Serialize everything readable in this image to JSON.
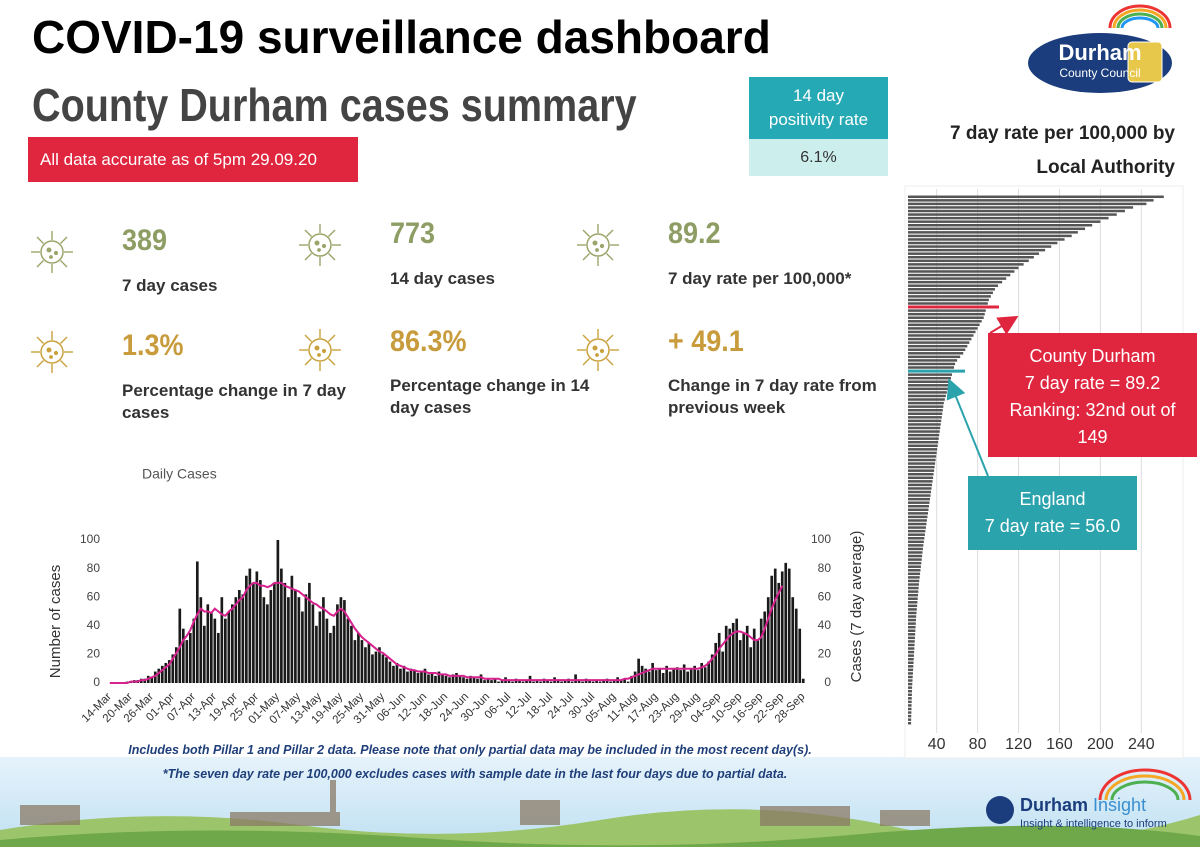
{
  "header": {
    "title": "COVID-19 surveillance dashboard",
    "subtitle": "County Durham cases summary",
    "note": "All data accurate as of 5pm 29.09.20",
    "logo": "Durham",
    "logo_sub": "County Council"
  },
  "positivity": {
    "label": "14 day positivity rate",
    "value": "6.1%"
  },
  "kpis": [
    {
      "value": "389",
      "label": "7 day cases"
    },
    {
      "value": "773",
      "label": "14 day cases"
    },
    {
      "value": "89.2",
      "label": "7 day rate per 100,000*"
    },
    {
      "value": "1.3%",
      "label": "Percentage change in 7 day cases"
    },
    {
      "value": "86.3%",
      "label": "Percentage change in 14 day cases"
    },
    {
      "value": "+ 49.1",
      "label": "Change in 7 day rate from previous week"
    }
  ],
  "chart_data": [
    {
      "type": "bar",
      "title": "Daily Cases",
      "y_label": "Number of cases",
      "y2_label": "Cases (7 day average)",
      "categories": [
        "14-Mar",
        null,
        null,
        null,
        null,
        null,
        "20-Mar",
        null,
        null,
        null,
        null,
        null,
        "26-Mar",
        null,
        null,
        null,
        null,
        null,
        "01-Apr",
        null,
        null,
        null,
        null,
        null,
        "07-Apr",
        null,
        null,
        null,
        null,
        null,
        "13-Apr",
        null,
        null,
        null,
        null,
        null,
        "19-Apr",
        null,
        null,
        null,
        null,
        null,
        "25-Apr",
        null,
        null,
        null,
        null,
        null,
        "01-May",
        null,
        null,
        null,
        null,
        null,
        "07-May",
        null,
        null,
        null,
        null,
        null,
        "13-May",
        null,
        null,
        null,
        null,
        null,
        "19-May",
        null,
        null,
        null,
        null,
        null,
        "25-May",
        null,
        null,
        null,
        null,
        null,
        "31-May",
        null,
        null,
        null,
        null,
        null,
        "06-Jun",
        null,
        null,
        null,
        null,
        null,
        "12-Jun",
        null,
        null,
        null,
        null,
        null,
        "18-Jun",
        null,
        null,
        null,
        null,
        null,
        "24-Jun",
        null,
        null,
        null,
        null,
        null,
        "30-Jun",
        null,
        null,
        null,
        null,
        null,
        "06-Jul",
        null,
        null,
        null,
        null,
        null,
        "12-Jul",
        null,
        null,
        null,
        null,
        null,
        "18-Jul",
        null,
        null,
        null,
        null,
        null,
        "24-Jul",
        null,
        null,
        null,
        null,
        null,
        "30-Jul",
        null,
        null,
        null,
        null,
        null,
        "05-Aug",
        null,
        null,
        null,
        null,
        null,
        "11-Aug",
        null,
        null,
        null,
        null,
        null,
        "17-Aug",
        null,
        null,
        null,
        null,
        null,
        "23-Aug",
        null,
        null,
        null,
        null,
        null,
        "29-Aug",
        null,
        null,
        null,
        null,
        null,
        "04-Sep",
        null,
        null,
        null,
        null,
        null,
        "10-Sep",
        null,
        null,
        null,
        null,
        null,
        "16-Sep",
        null,
        null,
        null,
        null,
        null,
        "22-Sep",
        null,
        null,
        null,
        null,
        null,
        "28-Sep"
      ],
      "series": [
        {
          "type": "bar",
          "color": "#1a1a1a",
          "values": [
            0,
            0,
            0,
            0,
            0,
            1,
            1,
            2,
            2,
            3,
            3,
            5,
            4,
            8,
            10,
            12,
            14,
            16,
            20,
            25,
            52,
            38,
            30,
            35,
            45,
            85,
            60,
            40,
            55,
            50,
            45,
            35,
            60,
            45,
            50,
            55,
            60,
            65,
            62,
            75,
            80,
            70,
            78,
            72,
            60,
            55,
            65,
            70,
            100,
            80,
            70,
            60,
            75,
            65,
            60,
            50,
            62,
            70,
            55,
            40,
            50,
            60,
            45,
            35,
            40,
            55,
            60,
            58,
            45,
            40,
            30,
            35,
            30,
            25,
            28,
            20,
            22,
            25,
            20,
            18,
            15,
            12,
            14,
            10,
            12,
            8,
            10,
            9,
            7,
            8,
            10,
            6,
            7,
            5,
            8,
            6,
            5,
            4,
            6,
            7,
            5,
            4,
            3,
            5,
            4,
            3,
            6,
            2,
            3,
            2,
            3,
            1,
            2,
            4,
            2,
            1,
            3,
            2,
            1,
            2,
            5,
            1,
            2,
            1,
            3,
            2,
            1,
            4,
            2,
            1,
            2,
            3,
            1,
            6,
            2,
            1,
            3,
            2,
            1,
            2,
            1,
            2,
            3,
            1,
            2,
            4,
            2,
            3,
            1,
            5,
            8,
            17,
            12,
            10,
            8,
            14,
            9,
            10,
            7,
            12,
            8,
            10,
            11,
            9,
            13,
            8,
            10,
            12,
            9,
            14,
            11,
            15,
            20,
            28,
            35,
            22,
            40,
            38,
            42,
            45,
            30,
            35,
            40,
            25,
            38,
            30,
            45,
            50,
            60,
            75,
            80,
            70,
            78,
            84,
            80,
            60,
            52,
            38,
            3
          ]
        },
        {
          "type": "line",
          "color": "#d6218f",
          "axis": "y2",
          "values": [
            0,
            0,
            0,
            0,
            0,
            0,
            1,
            1,
            1,
            2,
            2,
            3,
            4,
            5,
            7,
            9,
            11,
            13,
            17,
            21,
            25,
            30,
            33,
            37,
            43,
            48,
            52,
            50,
            50,
            49,
            52,
            50,
            48,
            47,
            50,
            52,
            55,
            58,
            60,
            65,
            68,
            70,
            70,
            68,
            68,
            67,
            68,
            70,
            70,
            70,
            68,
            67,
            66,
            65,
            64,
            62,
            60,
            58,
            56,
            55,
            53,
            52,
            50,
            48,
            47,
            50,
            52,
            50,
            46,
            42,
            38,
            35,
            32,
            30,
            28,
            26,
            24,
            22,
            21,
            19,
            17,
            15,
            13,
            12,
            11,
            10,
            9,
            9,
            8,
            8,
            8,
            7,
            7,
            7,
            6,
            6,
            6,
            5,
            5,
            5,
            5,
            5,
            4,
            4,
            4,
            4,
            4,
            3,
            3,
            3,
            3,
            3,
            2,
            2,
            2,
            2,
            2,
            2,
            2,
            2,
            2,
            2,
            2,
            2,
            2,
            2,
            2,
            2,
            2,
            2,
            2,
            2,
            2,
            2,
            2,
            2,
            2,
            2,
            2,
            2,
            2,
            2,
            2,
            2,
            2,
            2,
            2,
            3,
            3,
            4,
            5,
            6,
            7,
            8,
            9,
            10,
            10,
            10,
            10,
            10,
            10,
            10,
            10,
            10,
            10,
            10,
            10,
            10,
            10,
            11,
            12,
            14,
            17,
            20,
            24,
            27,
            30,
            33,
            35,
            36,
            36,
            35,
            34,
            32,
            30,
            30,
            32,
            38,
            45,
            52,
            58,
            63,
            68,
            null,
            null,
            null,
            null,
            null,
            null
          ]
        }
      ],
      "ylim": [
        0,
        100
      ],
      "yticks": [
        0,
        20,
        40,
        60,
        80,
        100
      ],
      "y2lim": [
        0,
        100
      ],
      "y2ticks": [
        0,
        20,
        40,
        60,
        80,
        100
      ],
      "grid": false
    },
    {
      "type": "bar",
      "orientation": "horizontal",
      "title": "7 day rate per 100,000 by Local Authority",
      "color": "#555555",
      "values": [
        262,
        252,
        245,
        232,
        224,
        216,
        208,
        200,
        192,
        185,
        178,
        172,
        165,
        158,
        152,
        146,
        140,
        135,
        130,
        125,
        120,
        116,
        112,
        108,
        104,
        100,
        97,
        95,
        93,
        91,
        90,
        89.2,
        88,
        87,
        86,
        84,
        82,
        80,
        78,
        76,
        74,
        72,
        70,
        68,
        66,
        63,
        60,
        58,
        57,
        56,
        55,
        54,
        53,
        52,
        51,
        50,
        49,
        48,
        47,
        46.5,
        46,
        45.5,
        45,
        44.5,
        44,
        43.5,
        43,
        42.5,
        42,
        41.5,
        41,
        40.5,
        40,
        39.5,
        39,
        38.5,
        38,
        37.5,
        37,
        36.5,
        36,
        35.5,
        35,
        34.5,
        34,
        33.5,
        33,
        32.5,
        32,
        31.5,
        31,
        30.5,
        30,
        29.5,
        29,
        28.5,
        28,
        27.5,
        27,
        26.6,
        26.2,
        25.8,
        25.4,
        25,
        24.6,
        24.2,
        23.8,
        23.4,
        23,
        22.7,
        22.4,
        22.1,
        21.8,
        21.5,
        21.2,
        20.9,
        20.6,
        20.3,
        20,
        19.8,
        19.6,
        19.4,
        19.2,
        19,
        18.8,
        18.6,
        18.4,
        18.2,
        18,
        17.8,
        17.6,
        17.4,
        17.2,
        17,
        16.8,
        16.6,
        16.4,
        16.2,
        16,
        15.9,
        15.8,
        15.7,
        15.6,
        15.5,
        15.4,
        15.3,
        15.2,
        15.1,
        15.05
      ],
      "xlim": [
        12,
        270
      ],
      "xticks": [
        40,
        80,
        120,
        160,
        200,
        240
      ],
      "grid": true,
      "reference_lines": [
        {
          "value": 89.2,
          "color": "#e0263f"
        },
        {
          "value": 56.0,
          "color": "#2ba3ad"
        }
      ],
      "annotations": [
        {
          "lines": [
            "County Durham",
            "7 day rate = 89.2",
            "Ranking: 32nd out of 149"
          ],
          "color": "#e0263f"
        },
        {
          "lines": [
            "England",
            "7 day rate = 56.0"
          ],
          "color": "#2ba3ad"
        }
      ]
    }
  ],
  "footnotes": [
    "Includes both Pillar 1 and Pillar 2 data. Please note that only partial data may be included in the most recent day(s).",
    "*The seven day rate per 100,000 excludes cases with sample date in the last four days due to partial data."
  ],
  "footer_logo": {
    "name": "Durham",
    "name2": "Insight",
    "tagline": "Insight & intelligence to inform"
  }
}
